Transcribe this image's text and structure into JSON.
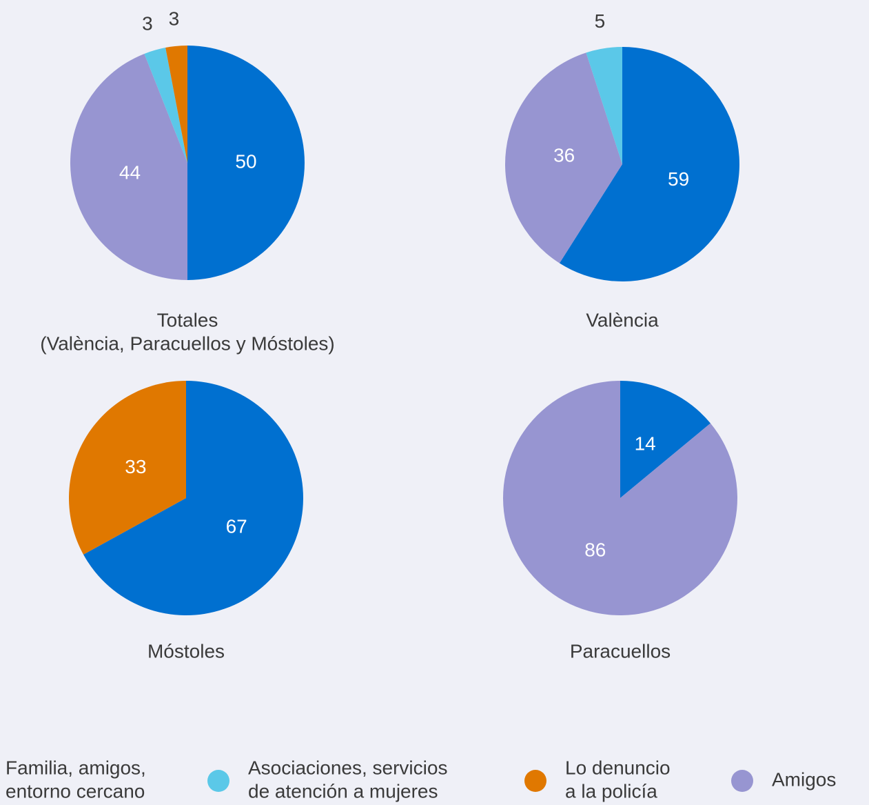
{
  "chart_data": [
    {
      "type": "pie",
      "title": "Totales",
      "subtitle": "(València, Paracuellos y Móstoles)",
      "values": [
        50,
        44,
        3,
        3
      ],
      "colors": [
        "#0070d0",
        "#9795d1",
        "#5bc8e8",
        "#e07800"
      ]
    },
    {
      "type": "pie",
      "title": "València",
      "values": [
        59,
        36,
        5
      ],
      "colors": [
        "#0070d0",
        "#9795d1",
        "#5bc8e8"
      ]
    },
    {
      "type": "pie",
      "title": "Móstoles",
      "values": [
        67,
        33
      ],
      "colors": [
        "#0070d0",
        "#e07800"
      ]
    },
    {
      "type": "pie",
      "title": "Paracuellos",
      "values": [
        14,
        86
      ],
      "colors": [
        "#0070d0",
        "#9795d1"
      ]
    }
  ],
  "legend": [
    {
      "name": [
        "Familia, amigos,",
        "entorno cercano"
      ],
      "color": "#0070d0"
    },
    {
      "name": [
        "Asociaciones, servicios",
        "de atención a mujeres"
      ],
      "color": "#5bc8e8"
    },
    {
      "name": [
        "Lo denuncio",
        "a la policía"
      ],
      "color": "#e07800"
    },
    {
      "name": [
        "Amigos"
      ],
      "color": "#9795d1"
    }
  ]
}
